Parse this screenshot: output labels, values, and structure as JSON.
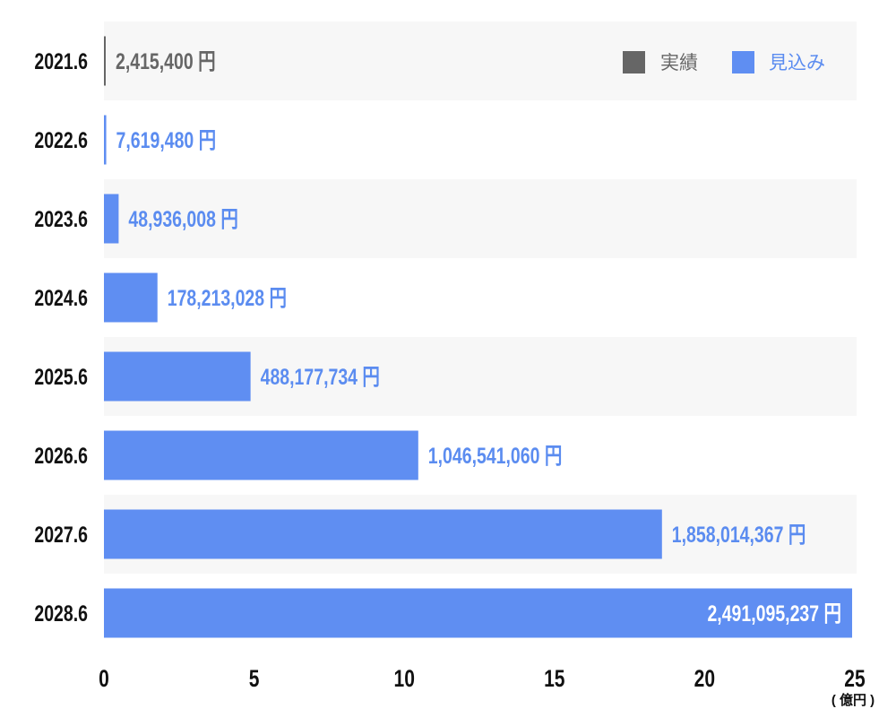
{
  "chart_data": {
    "type": "bar",
    "orientation": "horizontal",
    "categories": [
      "2021.6",
      "2022.6",
      "2023.6",
      "2024.6",
      "2025.6",
      "2026.6",
      "2027.6",
      "2028.6"
    ],
    "values": [
      2415400,
      7619480,
      48936008,
      178213028,
      488177734,
      1046541060,
      1858014367,
      2491095237
    ],
    "value_labels": [
      "2,415,400 円",
      "7,619,480 円",
      "48,936,008 円",
      "178,213,028 円",
      "488,177,734 円",
      "1,046,541,060 円",
      "1,858,014,367 円",
      "2,491,095,237 円"
    ],
    "bar_kind": [
      "actual",
      "forecast",
      "forecast",
      "forecast",
      "forecast",
      "forecast",
      "forecast",
      "forecast"
    ],
    "xlabel": "( 億円 )",
    "xlim": [
      0,
      25
    ],
    "x_unit_divisor": 100000000,
    "xticks": [
      "0",
      "5",
      "10",
      "15",
      "20",
      "25"
    ],
    "legend": {
      "placement": "top-right",
      "items": [
        {
          "key": "actual",
          "label": "実績",
          "color": "#666666"
        },
        {
          "key": "forecast",
          "label": "見込み",
          "color": "#5f8ef2"
        }
      ]
    },
    "grid": false,
    "colors": {
      "actual": "#666666",
      "forecast": "#5f8ef2",
      "forecast_text": "#5b8cf0",
      "row_alt": "#f7f7f7"
    }
  }
}
